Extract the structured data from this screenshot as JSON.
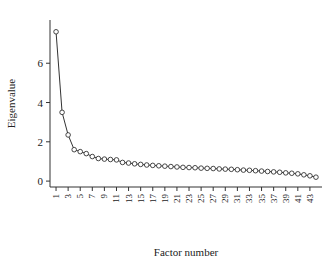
{
  "chart_data": {
    "type": "line",
    "x_label": "Factor number",
    "y_label": "Eigenvalue",
    "x": [
      1,
      2,
      3,
      4,
      5,
      6,
      7,
      8,
      9,
      10,
      11,
      12,
      13,
      14,
      15,
      16,
      17,
      18,
      19,
      20,
      21,
      22,
      23,
      24,
      25,
      26,
      27,
      28,
      29,
      30,
      31,
      32,
      33,
      34,
      35,
      36,
      37,
      38,
      39,
      40,
      41,
      42,
      43,
      44
    ],
    "values": [
      7.6,
      3.5,
      2.35,
      1.6,
      1.5,
      1.4,
      1.25,
      1.15,
      1.12,
      1.1,
      1.08,
      0.95,
      0.92,
      0.88,
      0.85,
      0.82,
      0.8,
      0.78,
      0.76,
      0.74,
      0.72,
      0.7,
      0.69,
      0.68,
      0.66,
      0.65,
      0.64,
      0.62,
      0.61,
      0.6,
      0.58,
      0.56,
      0.55,
      0.53,
      0.51,
      0.49,
      0.47,
      0.45,
      0.42,
      0.4,
      0.37,
      0.32,
      0.27,
      0.2
    ],
    "color": "#333333",
    "marker": "circle",
    "xlim": [
      0,
      45
    ],
    "xticks": [
      1,
      3,
      5,
      7,
      9,
      11,
      13,
      15,
      17,
      19,
      21,
      23,
      25,
      27,
      29,
      31,
      33,
      35,
      37,
      39,
      41,
      43
    ],
    "ylim": [
      -0.3,
      8.2
    ],
    "yticks": [
      0,
      2,
      4,
      6
    ],
    "grid": false
  }
}
